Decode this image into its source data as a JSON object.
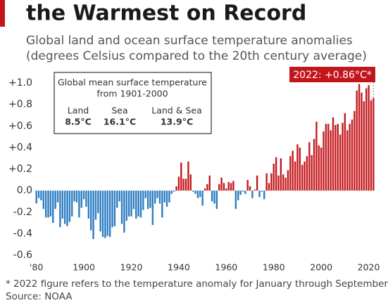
{
  "chart_data": {
    "type": "bar",
    "title": "the Warmest on Record",
    "subtitle": [
      "Global land and ocean surface temperature anomalies",
      "(degrees Celsius compared to the 20th century average)"
    ],
    "annotation": "2022: +0.86°C*",
    "inset": {
      "title": [
        "Global mean surface temperature",
        "from 1901-2000"
      ],
      "labels": [
        "Land",
        "Sea",
        "Land & Sea"
      ],
      "values": [
        "8.5°C",
        "16.1°C",
        "13.9°C"
      ]
    },
    "footnote": "* 2022 figure refers to the temperature anomaly for January through September",
    "source": "Source: NOAA",
    "positive_color": "#c3161c",
    "negative_color": "#2a7bc1",
    "x": [
      1880,
      1881,
      1882,
      1883,
      1884,
      1885,
      1886,
      1887,
      1888,
      1889,
      1890,
      1891,
      1892,
      1893,
      1894,
      1895,
      1896,
      1897,
      1898,
      1899,
      1900,
      1901,
      1902,
      1903,
      1904,
      1905,
      1906,
      1907,
      1908,
      1909,
      1910,
      1911,
      1912,
      1913,
      1914,
      1915,
      1916,
      1917,
      1918,
      1919,
      1920,
      1921,
      1922,
      1923,
      1924,
      1925,
      1926,
      1927,
      1928,
      1929,
      1930,
      1931,
      1932,
      1933,
      1934,
      1935,
      1936,
      1937,
      1938,
      1939,
      1940,
      1941,
      1942,
      1943,
      1944,
      1945,
      1946,
      1947,
      1948,
      1949,
      1950,
      1951,
      1952,
      1953,
      1954,
      1955,
      1956,
      1957,
      1958,
      1959,
      1960,
      1961,
      1962,
      1963,
      1964,
      1965,
      1966,
      1967,
      1968,
      1969,
      1970,
      1971,
      1972,
      1973,
      1974,
      1975,
      1976,
      1977,
      1978,
      1979,
      1980,
      1981,
      1982,
      1983,
      1984,
      1985,
      1986,
      1987,
      1988,
      1989,
      1990,
      1991,
      1992,
      1993,
      1994,
      1995,
      1996,
      1997,
      1998,
      1999,
      2000,
      2001,
      2002,
      2003,
      2004,
      2005,
      2006,
      2007,
      2008,
      2009,
      2010,
      2011,
      2012,
      2013,
      2014,
      2015,
      2016,
      2017,
      2018,
      2019,
      2020,
      2021,
      2022
    ],
    "values": [
      -0.12,
      -0.07,
      -0.09,
      -0.17,
      -0.25,
      -0.25,
      -0.24,
      -0.3,
      -0.17,
      -0.11,
      -0.34,
      -0.26,
      -0.31,
      -0.33,
      -0.29,
      -0.24,
      -0.1,
      -0.11,
      -0.25,
      -0.16,
      -0.08,
      -0.15,
      -0.26,
      -0.37,
      -0.45,
      -0.27,
      -0.21,
      -0.38,
      -0.43,
      -0.44,
      -0.42,
      -0.43,
      -0.34,
      -0.33,
      -0.16,
      -0.1,
      -0.31,
      -0.39,
      -0.28,
      -0.24,
      -0.24,
      -0.17,
      -0.26,
      -0.24,
      -0.25,
      -0.18,
      -0.07,
      -0.17,
      -0.16,
      -0.32,
      -0.12,
      -0.07,
      -0.12,
      -0.25,
      -0.11,
      -0.15,
      -0.11,
      -0.03,
      -0.01,
      0.04,
      0.13,
      0.26,
      0.11,
      0.11,
      0.27,
      0.15,
      -0.01,
      -0.03,
      -0.07,
      -0.06,
      -0.14,
      0.02,
      0.06,
      0.14,
      -0.1,
      -0.12,
      -0.17,
      0.06,
      0.12,
      0.07,
      0.02,
      0.08,
      0.07,
      0.09,
      -0.17,
      -0.09,
      -0.04,
      -0.01,
      -0.03,
      0.1,
      0.04,
      -0.07,
      0.01,
      0.14,
      -0.06,
      -0.01,
      -0.08,
      0.16,
      0.07,
      0.16,
      0.25,
      0.31,
      0.14,
      0.3,
      0.15,
      0.12,
      0.19,
      0.32,
      0.37,
      0.27,
      0.43,
      0.4,
      0.24,
      0.27,
      0.32,
      0.45,
      0.33,
      0.48,
      0.64,
      0.42,
      0.4,
      0.55,
      0.62,
      0.62,
      0.56,
      0.68,
      0.61,
      0.62,
      0.52,
      0.63,
      0.72,
      0.56,
      0.62,
      0.66,
      0.74,
      0.93,
      0.99,
      0.91,
      0.83,
      0.95,
      0.98,
      0.84,
      0.86
    ],
    "xlim": [
      1879.5,
      2022.5
    ],
    "xticks": [
      {
        "value": 1880,
        "label": "'80"
      },
      1900,
      1920,
      1940,
      1960,
      1980,
      2000,
      2020
    ],
    "ylim": [
      -0.6,
      1.0
    ],
    "yticks": [
      {
        "value": 1.0,
        "label": "+1.0"
      },
      {
        "value": 0.8,
        "label": "+0.8"
      },
      {
        "value": 0.6,
        "label": "+0.6"
      },
      {
        "value": 0.4,
        "label": "+0.4"
      },
      {
        "value": 0.2,
        "label": "+0.2"
      },
      {
        "value": 0,
        "label": "0.0"
      },
      {
        "value": -0.2,
        "label": "-0.2"
      },
      {
        "value": -0.4,
        "label": "-0.4"
      },
      {
        "value": -0.6,
        "label": "-0.6"
      }
    ],
    "grid": false
  }
}
